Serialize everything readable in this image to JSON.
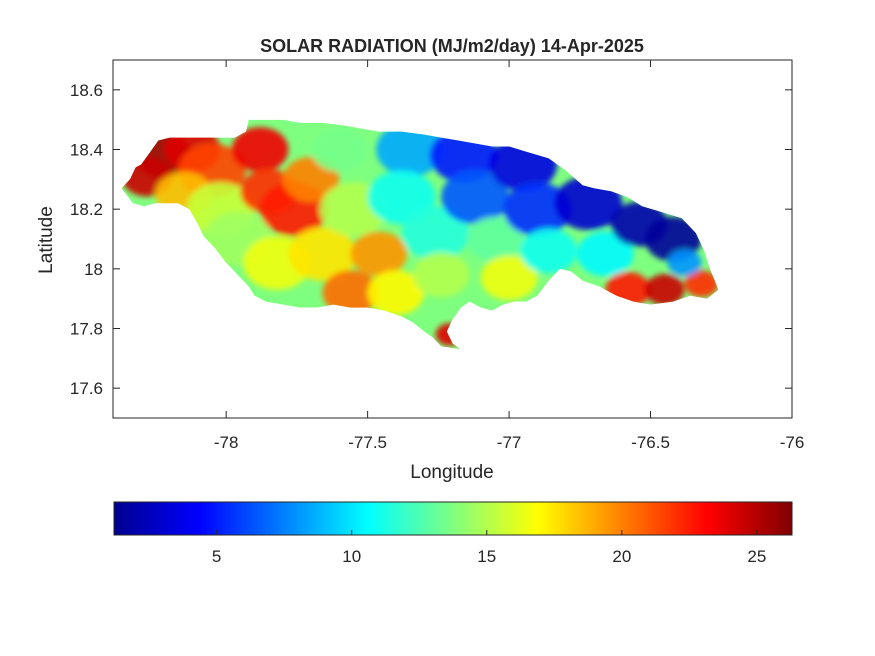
{
  "chart_data": {
    "type": "heatmap",
    "title": "SOLAR RADIATION (MJ/m2/day) 14-Apr-2025",
    "xlabel": "Longitude",
    "ylabel": "Latitude",
    "xlim": [
      -78.4,
      -76.0
    ],
    "ylim": [
      17.5,
      18.7
    ],
    "x_ticks": [
      -78,
      -77.5,
      -77,
      -76.5,
      -76
    ],
    "x_tick_labels": [
      "-78",
      "-77.5",
      "-77",
      "-76.5",
      "-76"
    ],
    "y_ticks": [
      17.6,
      17.8,
      18.0,
      18.2,
      18.4,
      18.6
    ],
    "y_tick_labels": [
      "17.6",
      "17.8",
      "18",
      "18.2",
      "18.4",
      "18.6"
    ],
    "colorbar": {
      "range": [
        1.2,
        26.3
      ],
      "ticks": [
        5,
        10,
        15,
        20,
        25
      ],
      "tick_labels": [
        "5",
        "10",
        "15",
        "20",
        "25"
      ],
      "colormap": "jet",
      "location": "bottom"
    },
    "outline_lonlat": [
      [
        -78.37,
        18.27
      ],
      [
        -78.34,
        18.3
      ],
      [
        -78.32,
        18.34
      ],
      [
        -78.3,
        18.35
      ],
      [
        -78.27,
        18.39
      ],
      [
        -78.24,
        18.43
      ],
      [
        -78.2,
        18.44
      ],
      [
        -78.14,
        18.44
      ],
      [
        -78.08,
        18.44
      ],
      [
        -78.02,
        18.44
      ],
      [
        -77.97,
        18.44
      ],
      [
        -77.93,
        18.46
      ],
      [
        -77.92,
        18.5
      ],
      [
        -77.86,
        18.5
      ],
      [
        -77.8,
        18.5
      ],
      [
        -77.74,
        18.49
      ],
      [
        -77.66,
        18.49
      ],
      [
        -77.58,
        18.48
      ],
      [
        -77.52,
        18.47
      ],
      [
        -77.46,
        18.46
      ],
      [
        -77.38,
        18.46
      ],
      [
        -77.3,
        18.45
      ],
      [
        -77.24,
        18.44
      ],
      [
        -77.18,
        18.43
      ],
      [
        -77.12,
        18.42
      ],
      [
        -77.06,
        18.41
      ],
      [
        -77.0,
        18.41
      ],
      [
        -76.93,
        18.39
      ],
      [
        -76.86,
        18.37
      ],
      [
        -76.8,
        18.33
      ],
      [
        -76.74,
        18.28
      ],
      [
        -76.7,
        18.27
      ],
      [
        -76.64,
        18.26
      ],
      [
        -76.58,
        18.24
      ],
      [
        -76.53,
        18.21
      ],
      [
        -76.46,
        18.19
      ],
      [
        -76.39,
        18.17
      ],
      [
        -76.34,
        18.12
      ],
      [
        -76.31,
        18.06
      ],
      [
        -76.29,
        18.0
      ],
      [
        -76.26,
        17.93
      ],
      [
        -76.3,
        17.9
      ],
      [
        -76.36,
        17.91
      ],
      [
        -76.42,
        17.89
      ],
      [
        -76.5,
        17.88
      ],
      [
        -76.56,
        17.89
      ],
      [
        -76.62,
        17.91
      ],
      [
        -76.68,
        17.94
      ],
      [
        -76.74,
        17.96
      ],
      [
        -76.78,
        17.99
      ],
      [
        -76.82,
        18.0
      ],
      [
        -76.86,
        17.96
      ],
      [
        -76.9,
        17.91
      ],
      [
        -76.94,
        17.89
      ],
      [
        -76.98,
        17.89
      ],
      [
        -77.02,
        17.88
      ],
      [
        -77.06,
        17.86
      ],
      [
        -77.1,
        17.87
      ],
      [
        -77.14,
        17.89
      ],
      [
        -77.17,
        17.87
      ],
      [
        -77.2,
        17.83
      ],
      [
        -77.22,
        17.79
      ],
      [
        -77.2,
        17.75
      ],
      [
        -77.17,
        17.73
      ],
      [
        -77.24,
        17.74
      ],
      [
        -77.27,
        17.77
      ],
      [
        -77.3,
        17.79
      ],
      [
        -77.34,
        17.82
      ],
      [
        -77.38,
        17.84
      ],
      [
        -77.44,
        17.86
      ],
      [
        -77.5,
        17.87
      ],
      [
        -77.56,
        17.87
      ],
      [
        -77.62,
        17.88
      ],
      [
        -77.68,
        17.87
      ],
      [
        -77.74,
        17.87
      ],
      [
        -77.8,
        17.88
      ],
      [
        -77.86,
        17.89
      ],
      [
        -77.9,
        17.91
      ],
      [
        -77.92,
        17.94
      ],
      [
        -77.96,
        17.98
      ],
      [
        -78.0,
        18.02
      ],
      [
        -78.04,
        18.07
      ],
      [
        -78.08,
        18.11
      ],
      [
        -78.1,
        18.15
      ],
      [
        -78.13,
        18.2
      ],
      [
        -78.17,
        18.22
      ],
      [
        -78.21,
        18.22
      ],
      [
        -78.25,
        18.22
      ],
      [
        -78.29,
        18.21
      ],
      [
        -78.33,
        18.22
      ],
      [
        -78.37,
        18.27
      ]
    ],
    "value_field": [
      {
        "lon": -78.22,
        "lat": 18.38,
        "value": 25.5,
        "spread": 0.1
      },
      {
        "lon": -78.28,
        "lat": 18.31,
        "value": 24.5,
        "spread": 0.09
      },
      {
        "lon": -78.12,
        "lat": 18.4,
        "value": 24.0,
        "spread": 0.1
      },
      {
        "lon": -78.05,
        "lat": 18.33,
        "value": 21.5,
        "spread": 0.12
      },
      {
        "lon": -78.15,
        "lat": 18.25,
        "value": 18.5,
        "spread": 0.1
      },
      {
        "lon": -78.02,
        "lat": 18.2,
        "value": 15.5,
        "spread": 0.12
      },
      {
        "lon": -77.96,
        "lat": 18.1,
        "value": 14.5,
        "spread": 0.12
      },
      {
        "lon": -77.88,
        "lat": 18.4,
        "value": 23.5,
        "spread": 0.1
      },
      {
        "lon": -77.85,
        "lat": 18.26,
        "value": 22.0,
        "spread": 0.1
      },
      {
        "lon": -77.76,
        "lat": 18.2,
        "value": 22.5,
        "spread": 0.12
      },
      {
        "lon": -77.7,
        "lat": 18.3,
        "value": 20.0,
        "spread": 0.1
      },
      {
        "lon": -77.82,
        "lat": 18.02,
        "value": 16.5,
        "spread": 0.12
      },
      {
        "lon": -77.66,
        "lat": 18.05,
        "value": 17.5,
        "spread": 0.12
      },
      {
        "lon": -77.6,
        "lat": 18.4,
        "value": 13.5,
        "spread": 0.1
      },
      {
        "lon": -77.55,
        "lat": 18.2,
        "value": 15.0,
        "spread": 0.12
      },
      {
        "lon": -77.46,
        "lat": 18.05,
        "value": 19.5,
        "spread": 0.1
      },
      {
        "lon": -77.56,
        "lat": 17.92,
        "value": 20.5,
        "spread": 0.1
      },
      {
        "lon": -77.4,
        "lat": 17.92,
        "value": 17.0,
        "spread": 0.1
      },
      {
        "lon": -77.35,
        "lat": 18.4,
        "value": 8.5,
        "spread": 0.12
      },
      {
        "lon": -77.38,
        "lat": 18.24,
        "value": 11.0,
        "spread": 0.12
      },
      {
        "lon": -77.26,
        "lat": 18.12,
        "value": 11.5,
        "spread": 0.12
      },
      {
        "lon": -77.24,
        "lat": 17.98,
        "value": 15.0,
        "spread": 0.1
      },
      {
        "lon": -77.21,
        "lat": 17.78,
        "value": 24.0,
        "spread": 0.05
      },
      {
        "lon": -77.16,
        "lat": 18.38,
        "value": 5.0,
        "spread": 0.12
      },
      {
        "lon": -77.12,
        "lat": 18.24,
        "value": 6.5,
        "spread": 0.12
      },
      {
        "lon": -77.05,
        "lat": 18.1,
        "value": 13.0,
        "spread": 0.1
      },
      {
        "lon": -77.0,
        "lat": 17.97,
        "value": 16.5,
        "spread": 0.1
      },
      {
        "lon": -76.95,
        "lat": 18.35,
        "value": 3.5,
        "spread": 0.12
      },
      {
        "lon": -76.9,
        "lat": 18.2,
        "value": 5.5,
        "spread": 0.12
      },
      {
        "lon": -76.86,
        "lat": 18.06,
        "value": 11.0,
        "spread": 0.1
      },
      {
        "lon": -76.72,
        "lat": 18.22,
        "value": 3.0,
        "spread": 0.12
      },
      {
        "lon": -76.66,
        "lat": 18.05,
        "value": 10.5,
        "spread": 0.1
      },
      {
        "lon": -76.54,
        "lat": 18.15,
        "value": 2.0,
        "spread": 0.1
      },
      {
        "lon": -76.42,
        "lat": 18.1,
        "value": 1.5,
        "spread": 0.1
      },
      {
        "lon": -76.58,
        "lat": 17.93,
        "value": 22.5,
        "spread": 0.08
      },
      {
        "lon": -76.45,
        "lat": 17.93,
        "value": 24.5,
        "spread": 0.07
      },
      {
        "lon": -76.32,
        "lat": 17.95,
        "value": 22.0,
        "spread": 0.06
      },
      {
        "lon": -76.38,
        "lat": 18.02,
        "value": 8.0,
        "spread": 0.06
      }
    ]
  }
}
